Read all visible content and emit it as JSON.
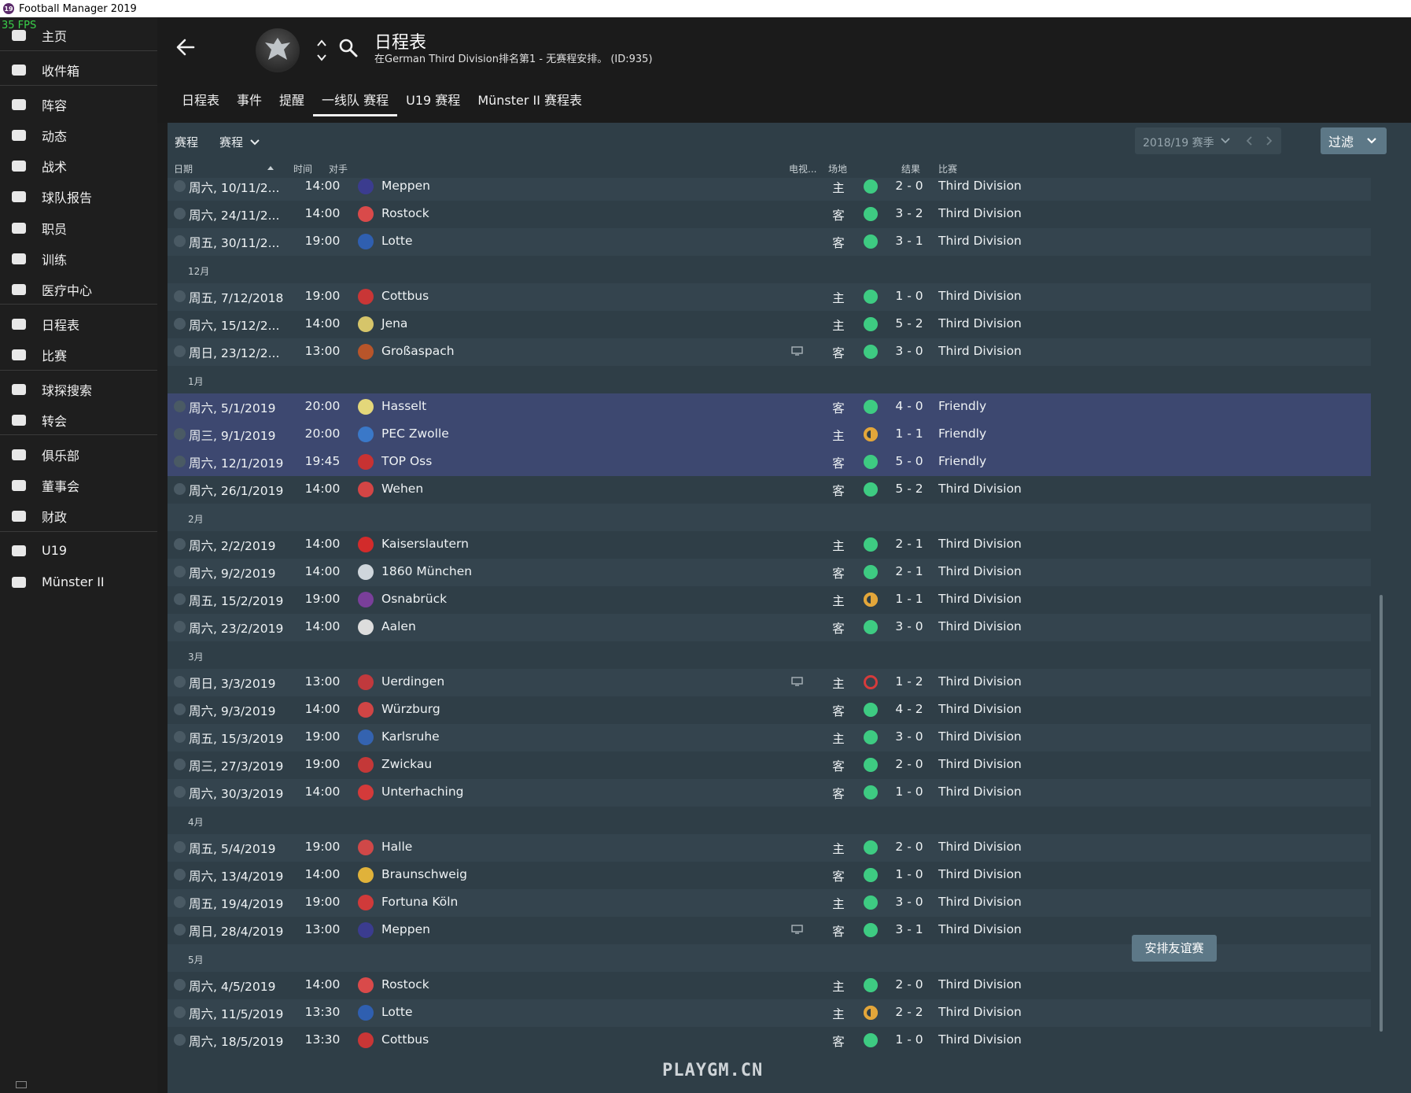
{
  "window": {
    "title": "Football Manager 2019",
    "fps": "35 FPS"
  },
  "sidebar": {
    "items": [
      {
        "label": "主页",
        "icon": "home-icon"
      },
      {
        "label": "收件箱",
        "icon": "inbox-icon"
      },
      {
        "label": "阵容",
        "icon": "squad-icon"
      },
      {
        "label": "动态",
        "icon": "dynamics-icon"
      },
      {
        "label": "战术",
        "icon": "tactics-icon"
      },
      {
        "label": "球队报告",
        "icon": "report-icon"
      },
      {
        "label": "职员",
        "icon": "staff-icon"
      },
      {
        "label": "训练",
        "icon": "training-icon"
      },
      {
        "label": "医疗中心",
        "icon": "medical-icon"
      },
      {
        "label": "日程表",
        "icon": "calendar-icon"
      },
      {
        "label": "比赛",
        "icon": "trophy-icon"
      },
      {
        "label": "球探搜索",
        "icon": "scouting-icon"
      },
      {
        "label": "转会",
        "icon": "transfers-icon"
      },
      {
        "label": "俱乐部",
        "icon": "club-icon"
      },
      {
        "label": "董事会",
        "icon": "board-icon"
      },
      {
        "label": "财政",
        "icon": "finances-icon"
      },
      {
        "label": "U19",
        "icon": "u19-icon"
      },
      {
        "label": "Münster II",
        "icon": "reserve-icon"
      }
    ]
  },
  "header": {
    "title": "日程表",
    "subtitle": "在German Third Division排名第1 - 无赛程安排。 (ID:935)",
    "tabs": [
      "日程表",
      "事件",
      "提醒",
      "一线队 赛程",
      "U19 赛程",
      "Münster II 赛程表"
    ],
    "active_tab": 3
  },
  "filterbar": {
    "label": "赛程",
    "dropdown": "赛程",
    "season": "2018/19 赛季",
    "filter_button": "过滤"
  },
  "columns": {
    "date": "日期",
    "time": "时间",
    "opponent": "对手",
    "tv": "电视...",
    "venue": "场地",
    "result": "结果",
    "competition": "比赛"
  },
  "schedule": [
    {
      "date": "周六, 10/11/2...",
      "time": "14:00",
      "opp": "Meppen",
      "crest": "#3b3c8f",
      "tv": false,
      "venue": "主",
      "res": "w",
      "score": "2 - 0",
      "comp": "Third Division",
      "style": "alt"
    },
    {
      "date": "周六, 24/11/2...",
      "time": "14:00",
      "opp": "Rostock",
      "crest": "#d94a4a",
      "tv": false,
      "venue": "客",
      "res": "w",
      "score": "3 - 2",
      "comp": "Third Division",
      "style": ""
    },
    {
      "date": "周五, 30/11/2...",
      "time": "19:00",
      "opp": "Lotte",
      "crest": "#2f5fb0",
      "tv": false,
      "venue": "客",
      "res": "w",
      "score": "3 - 1",
      "comp": "Third Division",
      "style": "alt"
    },
    {
      "month": "12月",
      "style": ""
    },
    {
      "date": "周五, 7/12/2018",
      "time": "19:00",
      "opp": "Cottbus",
      "crest": "#c93636",
      "tv": false,
      "venue": "主",
      "res": "w",
      "score": "1 - 0",
      "comp": "Third Division",
      "style": "alt"
    },
    {
      "date": "周六, 15/12/2...",
      "time": "14:00",
      "opp": "Jena",
      "crest": "#d6c56a",
      "tv": false,
      "venue": "主",
      "res": "w",
      "score": "5 - 2",
      "comp": "Third Division",
      "style": ""
    },
    {
      "date": "周日, 23/12/2...",
      "time": "13:00",
      "opp": "Großaspach",
      "crest": "#b8552a",
      "tv": true,
      "venue": "客",
      "res": "w",
      "score": "3 - 0",
      "comp": "Third Division",
      "style": "alt"
    },
    {
      "month": "1月",
      "style": ""
    },
    {
      "date": "周六, 5/1/2019",
      "time": "20:00",
      "opp": "Hasselt",
      "crest": "#e4d77a",
      "tv": false,
      "venue": "客",
      "res": "w",
      "score": "4 - 0",
      "comp": "Friendly",
      "style": "friendly"
    },
    {
      "date": "周三, 9/1/2019",
      "time": "20:00",
      "opp": "PEC Zwolle",
      "crest": "#3a78c8",
      "tv": false,
      "venue": "主",
      "res": "d",
      "score": "1 - 1",
      "comp": "Friendly",
      "style": "friendly"
    },
    {
      "date": "周六, 12/1/2019",
      "time": "19:45",
      "opp": "TOP Oss",
      "crest": "#c83232",
      "tv": false,
      "venue": "客",
      "res": "w",
      "score": "5 - 0",
      "comp": "Friendly",
      "style": "friendly"
    },
    {
      "date": "周六, 26/1/2019",
      "time": "14:00",
      "opp": "Wehen",
      "crest": "#d44545",
      "tv": false,
      "venue": "客",
      "res": "w",
      "score": "5 - 2",
      "comp": "Third Division",
      "style": ""
    },
    {
      "month": "2月",
      "style": "alt"
    },
    {
      "date": "周六, 2/2/2019",
      "time": "14:00",
      "opp": "Kaiserslautern",
      "crest": "#d22b2b",
      "tv": false,
      "venue": "主",
      "res": "w",
      "score": "2 - 1",
      "comp": "Third Division",
      "style": ""
    },
    {
      "date": "周六, 9/2/2019",
      "time": "14:00",
      "opp": "1860 München",
      "crest": "#cfd6dc",
      "tv": false,
      "venue": "客",
      "res": "w",
      "score": "2 - 1",
      "comp": "Third Division",
      "style": "alt"
    },
    {
      "date": "周五, 15/2/2019",
      "time": "19:00",
      "opp": "Osnabrück",
      "crest": "#7a3f9a",
      "tv": false,
      "venue": "主",
      "res": "d",
      "score": "1 - 1",
      "comp": "Third Division",
      "style": ""
    },
    {
      "date": "周六, 23/2/2019",
      "time": "14:00",
      "opp": "Aalen",
      "crest": "#dddddd",
      "tv": false,
      "venue": "客",
      "res": "w",
      "score": "3 - 0",
      "comp": "Third Division",
      "style": "alt"
    },
    {
      "month": "3月",
      "style": ""
    },
    {
      "date": "周日, 3/3/2019",
      "time": "13:00",
      "opp": "Uerdingen",
      "crest": "#c0393d",
      "tv": true,
      "venue": "主",
      "res": "l",
      "score": "1 - 2",
      "comp": "Third Division",
      "style": "alt"
    },
    {
      "date": "周六, 9/3/2019",
      "time": "14:00",
      "opp": "Würzburg",
      "crest": "#d04545",
      "tv": false,
      "venue": "客",
      "res": "w",
      "score": "4 - 2",
      "comp": "Third Division",
      "style": ""
    },
    {
      "date": "周五, 15/3/2019",
      "time": "19:00",
      "opp": "Karlsruhe",
      "crest": "#3463b0",
      "tv": false,
      "venue": "主",
      "res": "w",
      "score": "3 - 0",
      "comp": "Third Division",
      "style": "alt"
    },
    {
      "date": "周三, 27/3/2019",
      "time": "19:00",
      "opp": "Zwickau",
      "crest": "#c43838",
      "tv": false,
      "venue": "客",
      "res": "w",
      "score": "2 - 0",
      "comp": "Third Division",
      "style": ""
    },
    {
      "date": "周六, 30/3/2019",
      "time": "14:00",
      "opp": "Unterhaching",
      "crest": "#d43a3a",
      "tv": false,
      "venue": "客",
      "res": "w",
      "score": "1 - 0",
      "comp": "Third Division",
      "style": "alt"
    },
    {
      "month": "4月",
      "style": ""
    },
    {
      "date": "周五, 5/4/2019",
      "time": "19:00",
      "opp": "Halle",
      "crest": "#d04848",
      "tv": false,
      "venue": "主",
      "res": "w",
      "score": "2 - 0",
      "comp": "Third Division",
      "style": "alt"
    },
    {
      "date": "周六, 13/4/2019",
      "time": "14:00",
      "opp": "Braunschweig",
      "crest": "#e0b23a",
      "tv": false,
      "venue": "客",
      "res": "w",
      "score": "1 - 0",
      "comp": "Third Division",
      "style": ""
    },
    {
      "date": "周五, 19/4/2019",
      "time": "19:00",
      "opp": "Fortuna Köln",
      "crest": "#d03a3a",
      "tv": false,
      "venue": "主",
      "res": "w",
      "score": "3 - 0",
      "comp": "Third Division",
      "style": "alt"
    },
    {
      "date": "周日, 28/4/2019",
      "time": "13:00",
      "opp": "Meppen",
      "crest": "#3b3c8f",
      "tv": true,
      "venue": "客",
      "res": "w",
      "score": "3 - 1",
      "comp": "Third Division",
      "style": ""
    },
    {
      "month": "5月",
      "style": "alt"
    },
    {
      "date": "周六, 4/5/2019",
      "time": "14:00",
      "opp": "Rostock",
      "crest": "#d94a4a",
      "tv": false,
      "venue": "主",
      "res": "w",
      "score": "2 - 0",
      "comp": "Third Division",
      "style": ""
    },
    {
      "date": "周六, 11/5/2019",
      "time": "13:30",
      "opp": "Lotte",
      "crest": "#2f5fb0",
      "tv": false,
      "venue": "主",
      "res": "d",
      "score": "2 - 2",
      "comp": "Third Division",
      "style": "alt"
    },
    {
      "date": "周六, 18/5/2019",
      "time": "13:30",
      "opp": "Cottbus",
      "crest": "#c93636",
      "tv": false,
      "venue": "客",
      "res": "w",
      "score": "1 - 0",
      "comp": "Third Division",
      "style": ""
    }
  ],
  "footer": {
    "arrange_friendly": "安排友谊赛",
    "watermark": "PLAYGM.CN"
  },
  "colors": {
    "win": "#3ecb82",
    "draw": "#e3a63a",
    "loss": "#d63b3b",
    "friendly_row": "#3d4870",
    "panel": "#2f3e47",
    "button": "#5d7887"
  }
}
